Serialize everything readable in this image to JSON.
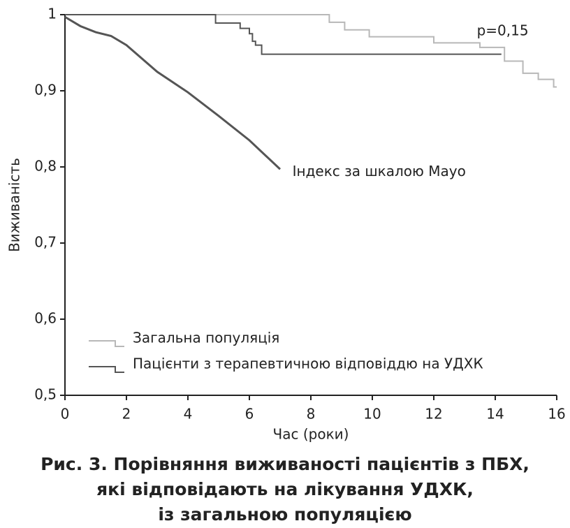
{
  "chart_data": {
    "type": "line",
    "title_lines": [
      "Рис. 3. Порівняння виживаності пацієнтів з ПБХ,",
      "які відповідають на лікування УДХК,",
      "із загальною популяцією"
    ],
    "x_label": "Час (роки)",
    "y_label": "Виживаність",
    "xlim": [
      0,
      16
    ],
    "xticks": [
      0,
      2,
      4,
      6,
      8,
      10,
      12,
      14,
      16
    ],
    "ylim": [
      0.5,
      1
    ],
    "yticks": [
      {
        "value": 0.5,
        "label": "0,5"
      },
      {
        "value": 0.6,
        "label": "0,6"
      },
      {
        "value": 0.7,
        "label": "0,7"
      },
      {
        "value": 0.8,
        "label": "0,8"
      },
      {
        "value": 0.9,
        "label": "0,9"
      },
      {
        "value": 1,
        "label": "1"
      }
    ],
    "legend": "lower left",
    "series": [
      {
        "name": "Загальна популяція",
        "color": "#b8b8b8",
        "step": true,
        "x": [
          0,
          8.6,
          9.1,
          9.9,
          12.0,
          13.5,
          14.3,
          14.9,
          15.4,
          15.9,
          16
        ],
        "values": [
          1,
          0.99,
          0.98,
          0.971,
          0.963,
          0.957,
          0.939,
          0.923,
          0.915,
          0.905,
          0.905
        ]
      },
      {
        "name": "Пацієнти з терапевтичною відповіддю на УДХК",
        "color": "#555555",
        "step": true,
        "x": [
          0,
          4.9,
          5.7,
          6.0,
          6.1,
          6.2,
          6.4,
          14.2
        ],
        "values": [
          1,
          0.989,
          0.982,
          0.975,
          0.965,
          0.96,
          0.948,
          0.948
        ]
      },
      {
        "name": "Індекс за шкалою Мауо",
        "color": "#555555",
        "step": false,
        "in_legend": false,
        "x": [
          0,
          0.5,
          1,
          1.5,
          2,
          3,
          4,
          5,
          6,
          7
        ],
        "values": [
          0.997,
          0.985,
          0.977,
          0.972,
          0.96,
          0.925,
          0.898,
          0.867,
          0.835,
          0.797
        ]
      }
    ],
    "annotations": [
      {
        "text": "p=0,15",
        "x": 13.4,
        "y": 0.978
      },
      {
        "text": "Індекс за шкалою Мауо",
        "x": 7.4,
        "y": 0.797
      }
    ]
  }
}
